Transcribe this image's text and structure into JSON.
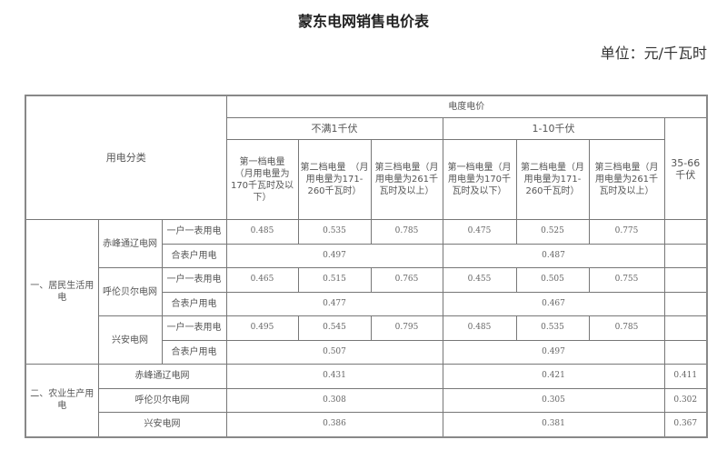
{
  "title": "蒙东电网销售电价表",
  "unit": "单位：元/千瓦时",
  "table": {
    "header": {
      "category": "用电分类",
      "price": "电度电价",
      "lt1kv": "不满1千伏",
      "kv1_10": "1-10千伏",
      "kv35_66": "35-66千伏",
      "tiers_lt1": [
        "第一档电量　（月用电量为170千瓦时及以下）",
        "第二档电量　（月用电量为171-260千瓦时）",
        "第三档电量（月用电量为261千瓦时及以上）"
      ],
      "tiers_1_10": [
        "第一档电量（月用电量为170千瓦时及以下）",
        "第二档电量（月用电量为171-260千瓦时）",
        "第三档电量（月用电量为261千瓦时及以上）"
      ]
    },
    "residential": {
      "label": "一、居民生活用电",
      "grids": [
        {
          "name": "赤峰通辽电网",
          "single_label": "一户一表用电",
          "single": [
            "0.485",
            "0.535",
            "0.785",
            "0.475",
            "0.525",
            "0.775"
          ],
          "shared_label": "合表户用电",
          "shared": [
            "0.497",
            "0.487"
          ]
        },
        {
          "name": "呼伦贝尔电网",
          "single_label": "一户一表用电",
          "single": [
            "0.465",
            "0.515",
            "0.765",
            "0.455",
            "0.505",
            "0.755"
          ],
          "shared_label": "合表户用电",
          "shared": [
            "0.477",
            "0.467"
          ]
        },
        {
          "name": "兴安电网",
          "single_label": "一户一表用电",
          "single": [
            "0.495",
            "0.545",
            "0.795",
            "0.485",
            "0.535",
            "0.785"
          ],
          "shared_label": "合表户用电",
          "shared": [
            "0.507",
            "0.497"
          ]
        }
      ]
    },
    "agricultural": {
      "label": "二、农业生产用电",
      "rows": [
        {
          "name": "赤峰通辽电网",
          "values": [
            "0.431",
            "0.421",
            "0.411"
          ]
        },
        {
          "name": "呼伦贝尔电网",
          "values": [
            "0.308",
            "0.305",
            "0.302"
          ]
        },
        {
          "name": "兴安电网",
          "values": [
            "0.386",
            "0.381",
            "0.367"
          ]
        }
      ]
    }
  }
}
